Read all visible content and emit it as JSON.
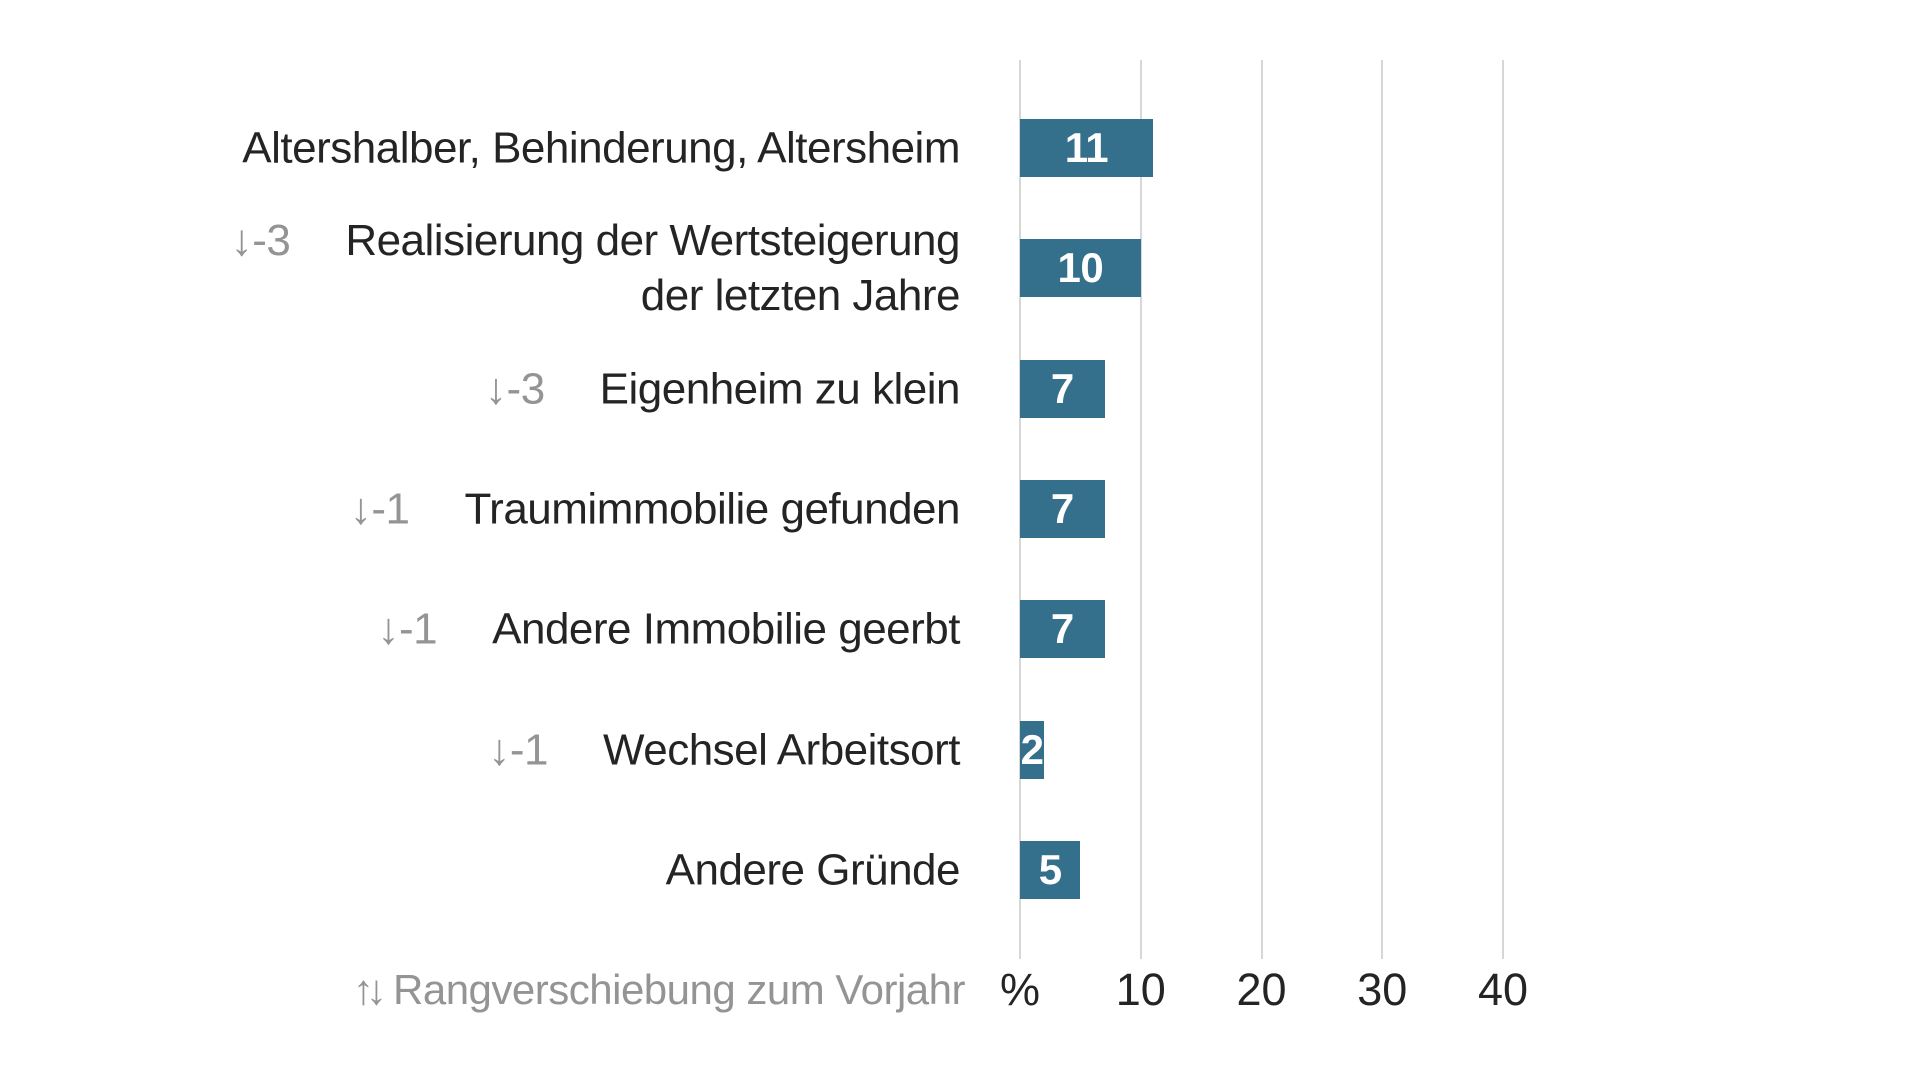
{
  "chart_data": {
    "type": "bar",
    "orientation": "horizontal",
    "title": "",
    "value_unit": "%",
    "categories": [
      "Altershalber, Behinderung, Altersheim",
      "Realisierung der Wertsteigerung der letzten Jahre",
      "Eigenheim zu klein",
      "Traumimmobilie gefunden",
      "Andere Immobilie geerbt",
      "Wechsel Arbeitsort",
      "Andere Gründe"
    ],
    "values": [
      11,
      10,
      7,
      7,
      7,
      2,
      5
    ],
    "rank_shift_vs_prior_year": [
      null,
      -3,
      -3,
      -1,
      -1,
      -1,
      null
    ],
    "xlim": [
      0,
      45
    ],
    "x_ticks": [
      0,
      10,
      20,
      30,
      40
    ],
    "x_tick_labels": [
      "%",
      "10",
      "20",
      "30",
      "40"
    ],
    "grid": "vertical-gridlines-on",
    "legend_position": "bottom-left",
    "bar_color": "#34708b",
    "value_label_color": "#ffffff",
    "rows": [
      {
        "label_lines": [
          "Altershalber, Behinderung, Altersheim"
        ],
        "rank_marker": null,
        "value": 11
      },
      {
        "label_lines": [
          "Realisierung der Wertsteigerung",
          "der letzten Jahre"
        ],
        "rank_marker": "↓-3",
        "value": 10
      },
      {
        "label_lines": [
          "Eigenheim zu klein"
        ],
        "rank_marker": "↓-3",
        "value": 7
      },
      {
        "label_lines": [
          "Traumimmobilie gefunden"
        ],
        "rank_marker": "↓-1",
        "value": 7
      },
      {
        "label_lines": [
          "Andere Immobilie geerbt"
        ],
        "rank_marker": "↓-1",
        "value": 7
      },
      {
        "label_lines": [
          "Wechsel Arbeitsort"
        ],
        "rank_marker": "↓-1",
        "value": 2
      },
      {
        "label_lines": [
          "Andere Gründe"
        ],
        "rank_marker": null,
        "value": 5
      }
    ]
  },
  "legend": {
    "icon": "↑↓",
    "text": "Rangverschiebung zum Vorjahr"
  },
  "colors": {
    "bar": "#34708b",
    "label_text": "#242424",
    "muted_text": "#949494",
    "gridline": "#d7d7d7",
    "value_text": "#ffffff"
  }
}
